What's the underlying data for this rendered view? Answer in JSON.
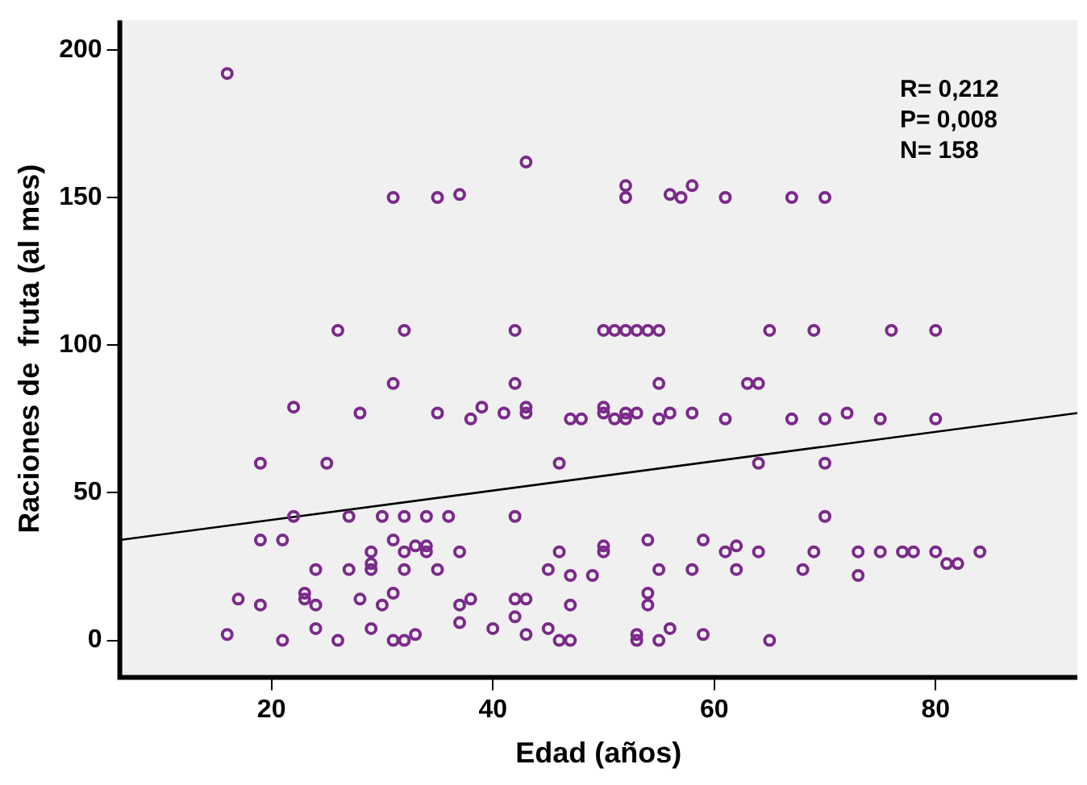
{
  "chart_data": {
    "type": "scatter",
    "xlabel": "Edad (años)",
    "ylabel": "Raciones de  fruta (al mes)",
    "xlim": [
      6.3,
      92.8
    ],
    "ylim": [
      -12.5,
      210
    ],
    "xticks": [
      20,
      40,
      60,
      80
    ],
    "yticks": [
      0,
      50,
      100,
      150,
      200
    ],
    "grid": false,
    "legend": false,
    "marker": "circle",
    "annotations": [
      "R= 0,212",
      "P= 0,008",
      "N= 158"
    ],
    "series": [
      {
        "type": "scatter",
        "color": "#7b2a8a",
        "x": [
          16,
          31,
          35,
          37,
          43,
          52,
          52,
          56,
          57,
          58,
          61,
          67,
          70,
          26,
          32,
          42,
          50,
          51,
          52,
          53,
          54,
          55,
          65,
          69,
          76,
          80,
          31,
          22,
          28,
          35,
          19,
          25,
          22,
          27,
          30,
          32,
          34,
          36,
          19,
          21,
          31,
          29,
          32,
          33,
          34,
          34,
          24,
          27,
          29,
          29,
          32,
          35,
          17,
          19,
          23,
          23,
          24,
          28,
          30,
          31,
          16,
          21,
          24,
          26,
          29,
          31,
          32,
          33,
          42,
          55,
          63,
          64,
          38,
          39,
          41,
          43,
          43,
          47,
          48,
          50,
          50,
          51,
          52,
          52,
          53,
          55,
          56,
          58,
          61,
          46,
          64,
          42,
          37,
          46,
          50,
          50,
          54,
          59,
          61,
          62,
          64,
          45,
          47,
          49,
          55,
          58,
          62,
          37,
          38,
          42,
          43,
          42,
          47,
          54,
          54,
          37,
          40,
          43,
          45,
          46,
          47,
          53,
          53,
          55,
          56,
          59,
          65,
          67,
          70,
          72,
          75,
          80,
          70,
          70,
          69,
          73,
          75,
          77,
          78,
          80,
          81,
          82,
          84,
          68,
          73
        ],
        "values": [
          192,
          150,
          150,
          151,
          162,
          154,
          150,
          151,
          150,
          154,
          150,
          150,
          150,
          105,
          105,
          105,
          105,
          105,
          105,
          105,
          105,
          105,
          105,
          105,
          105,
          105,
          87,
          79,
          77,
          77,
          60,
          60,
          42,
          42,
          42,
          42,
          42,
          42,
          34,
          34,
          34,
          30,
          30,
          32,
          32,
          30,
          24,
          24,
          26,
          24,
          24,
          24,
          14,
          12,
          16,
          14,
          12,
          14,
          12,
          16,
          2,
          0,
          4,
          0,
          4,
          0,
          0,
          2,
          87,
          87,
          87,
          87,
          75,
          79,
          77,
          79,
          77,
          75,
          75,
          79,
          77,
          75,
          77,
          75,
          77,
          75,
          77,
          77,
          75,
          60,
          60,
          42,
          30,
          30,
          32,
          30,
          34,
          34,
          30,
          32,
          30,
          24,
          22,
          22,
          24,
          24,
          24,
          12,
          14,
          14,
          14,
          8,
          12,
          16,
          12,
          6,
          4,
          2,
          4,
          0,
          0,
          2,
          0,
          0,
          4,
          2,
          0,
          75,
          75,
          77,
          75,
          75,
          60,
          42,
          30,
          30,
          30,
          30,
          30,
          30,
          26,
          26,
          30,
          24,
          22
        ]
      },
      {
        "type": "line",
        "color": "#000000",
        "marker": "none",
        "x": [
          6.3,
          92.8
        ],
        "values": [
          34,
          77
        ]
      }
    ]
  }
}
